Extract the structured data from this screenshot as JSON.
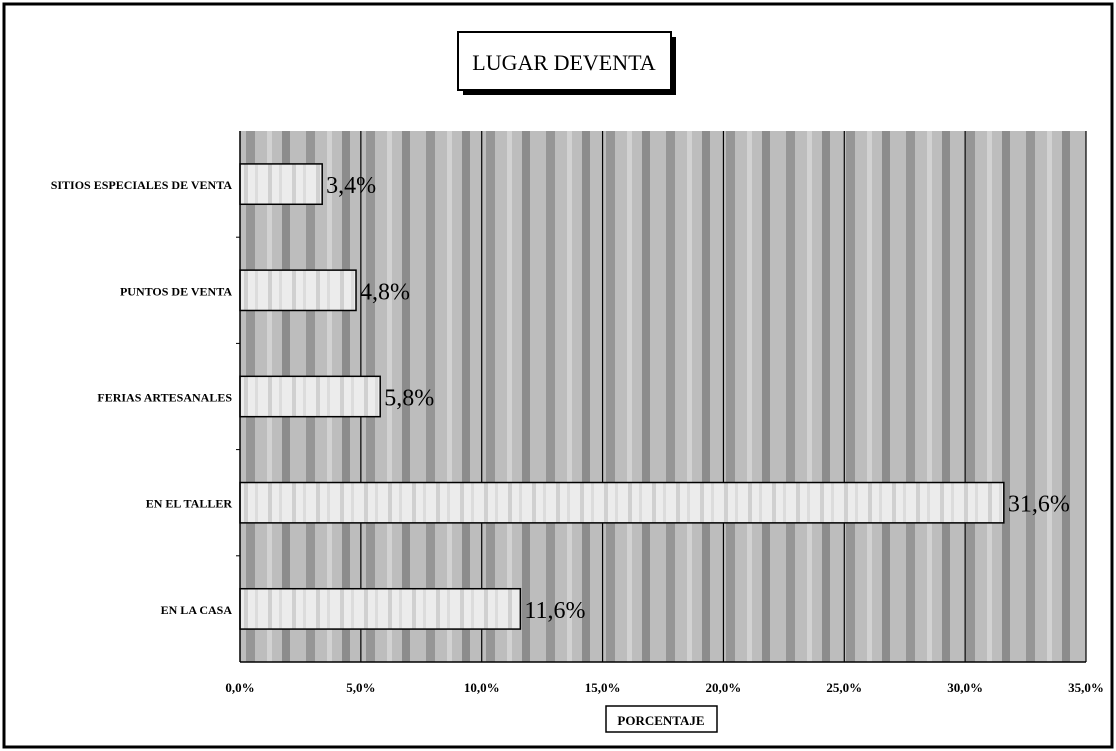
{
  "chart_data": {
    "type": "bar",
    "orientation": "horizontal",
    "title": "LUGAR DEVENTA",
    "xlabel": "PORCENTAJE",
    "ylabel": "",
    "categories": [
      "SITIOS ESPECIALES DE VENTA",
      "PUNTOS DE VENTA",
      "FERIAS ARTESANALES",
      "EN EL TALLER",
      "EN LA CASA"
    ],
    "values": [
      3.4,
      4.8,
      5.8,
      31.6,
      11.6
    ],
    "value_labels": [
      "3,4%",
      "4,8%",
      "5,8%",
      "31,6%",
      "11,6%"
    ],
    "xlim": [
      0,
      35
    ],
    "x_ticks": [
      0,
      5,
      10,
      15,
      20,
      25,
      30,
      35
    ],
    "x_tick_labels": [
      "0,0%",
      "5,0%",
      "10,0%",
      "15,0%",
      "20,0%",
      "25,0%",
      "30,0%",
      "35,0%"
    ],
    "grid": true,
    "legend": "none",
    "colors": {
      "plot_background": "#b4b4b4",
      "bar_fill": "#e8e8e8",
      "gridline": "#000000"
    }
  }
}
